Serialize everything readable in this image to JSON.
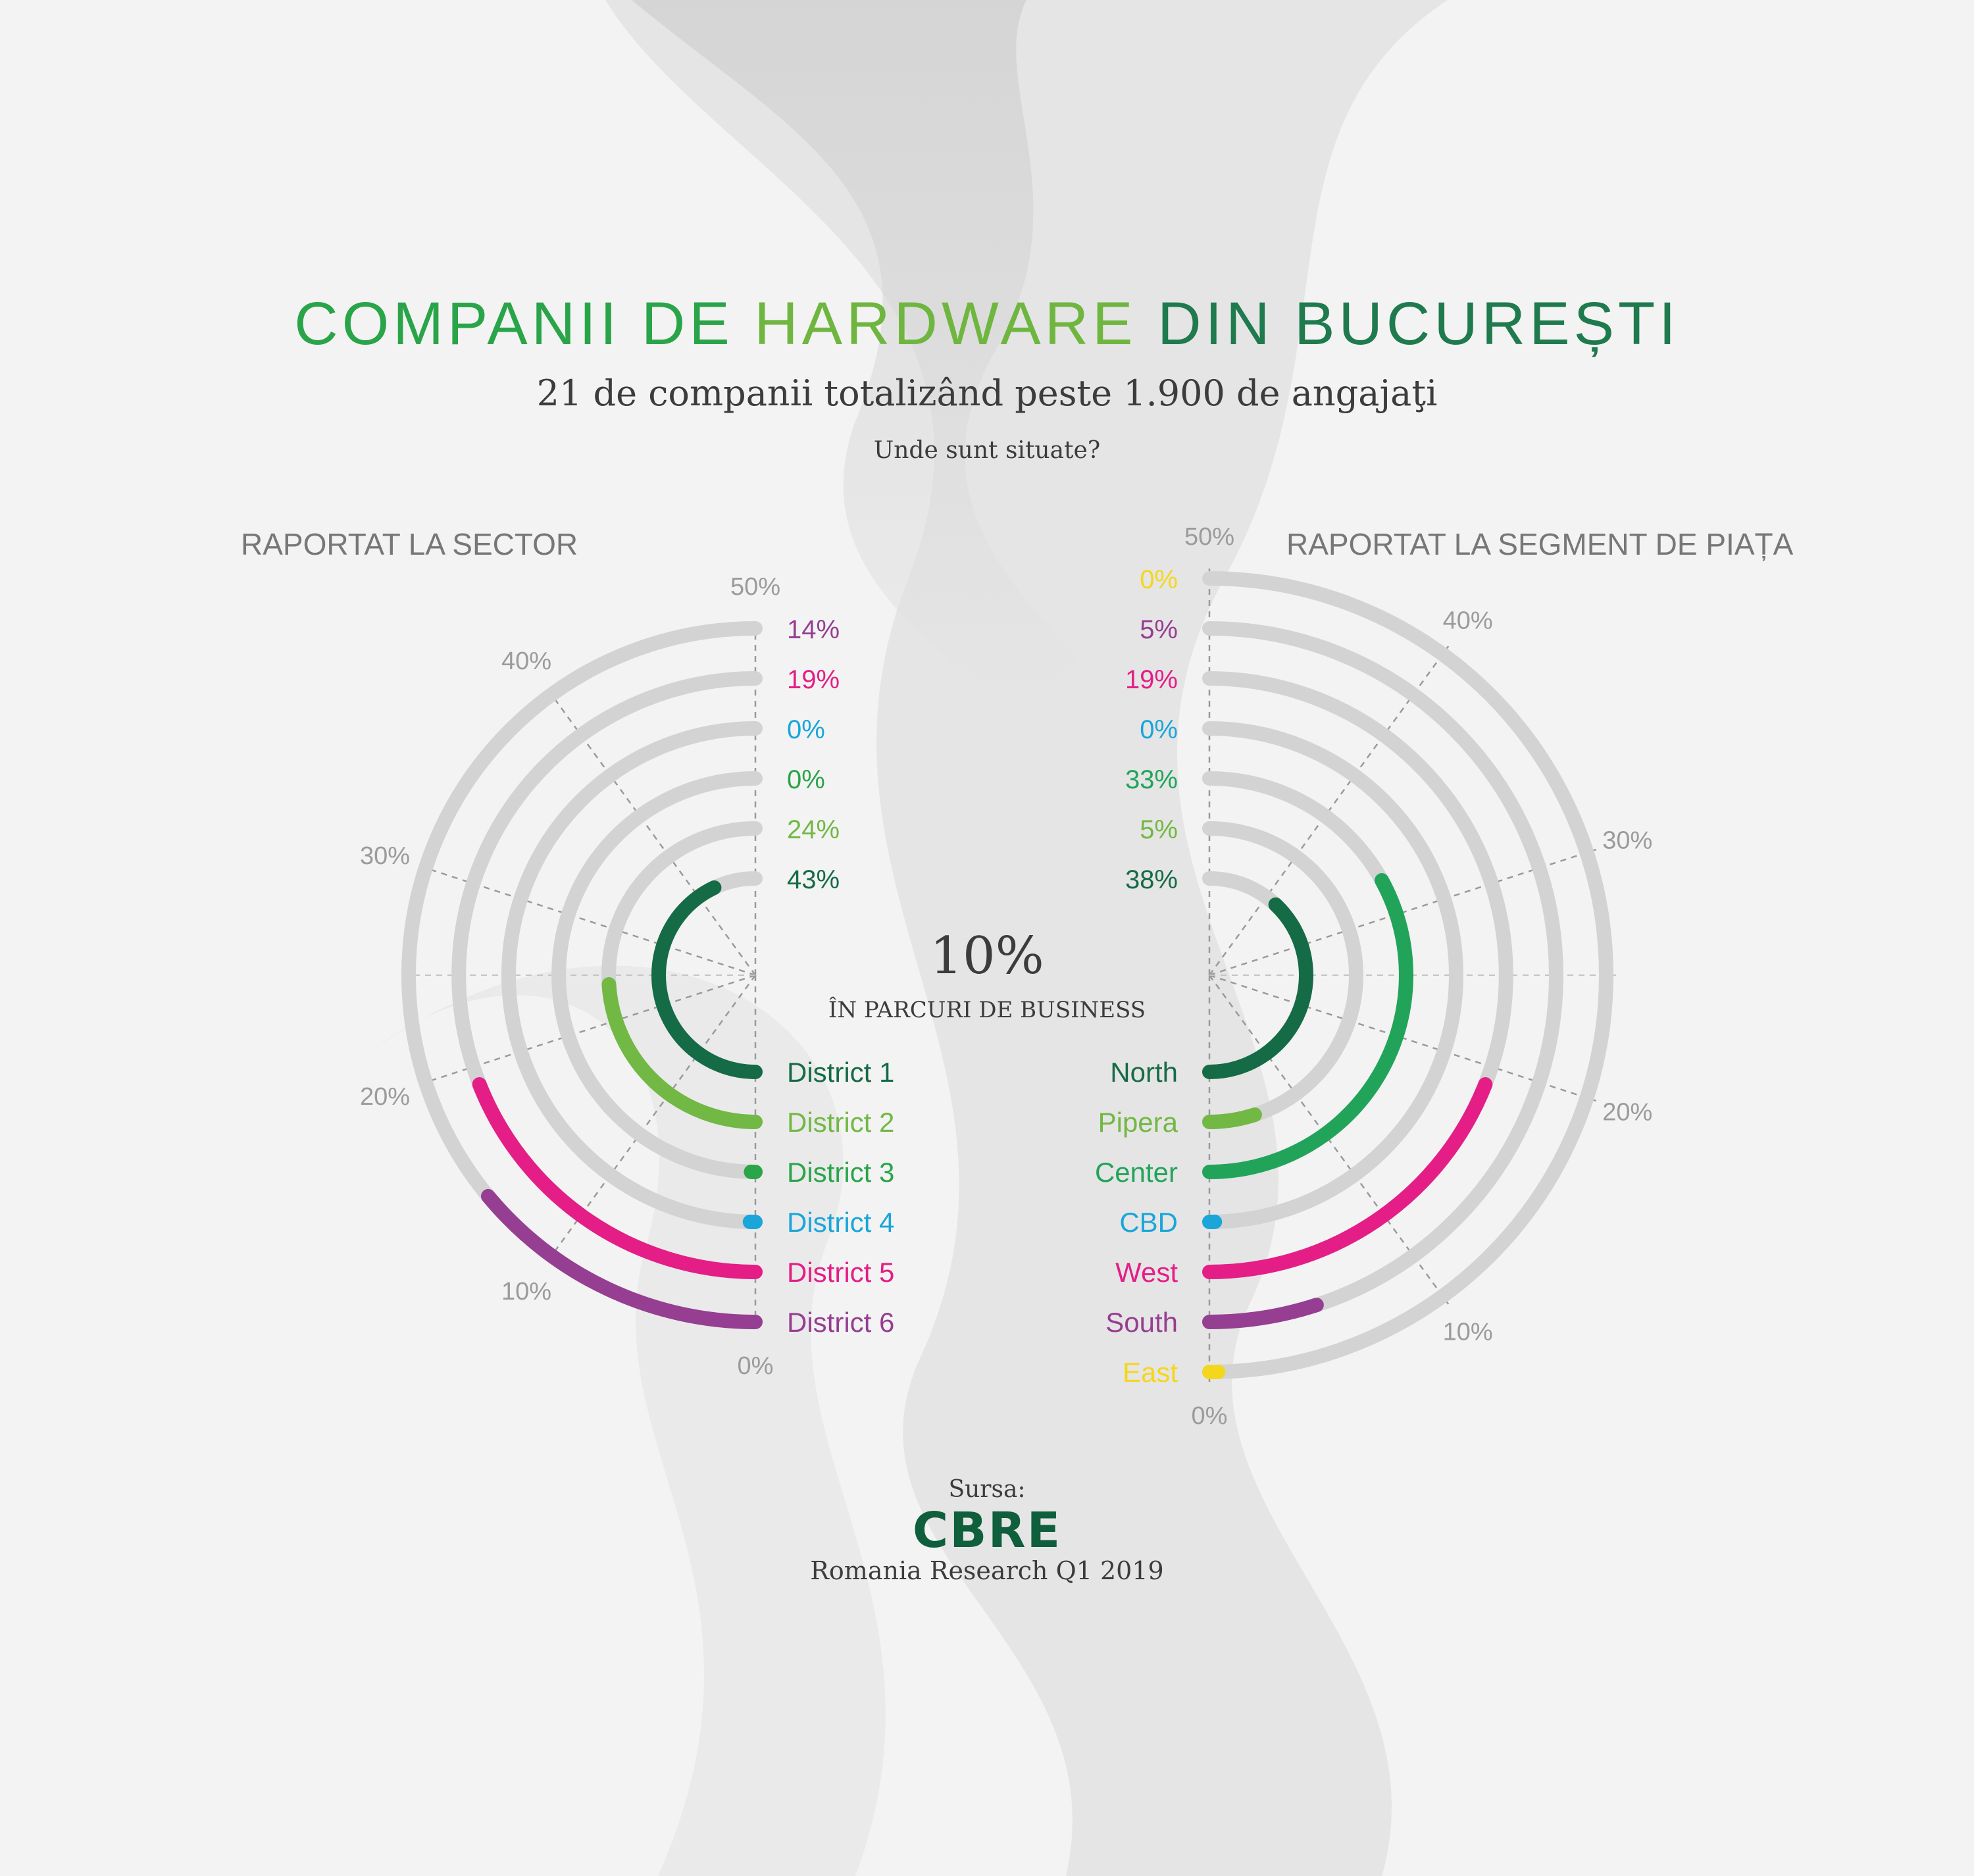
{
  "header": {
    "title_part1": "COMPANII DE ",
    "title_part2": "HARDWARE",
    "title_part3": " DIN BUCUREȘTI",
    "subtitle": "21 de companii totalizând peste 1.900 de angajaţi",
    "question": "Unde sunt situate?"
  },
  "center": {
    "value": "10%",
    "label": "ÎN PARCURI DE BUSINESS"
  },
  "source": {
    "label": "Sursa:",
    "logo": "CBRE",
    "text": "Romania Research Q1 2019"
  },
  "colors": {
    "track": "#d3d3d3",
    "axis": "#9a9a9a",
    "tick_text": "#9b9b9b"
  },
  "chart_data": [
    {
      "type": "radial-bar",
      "title": "RAPORTAT LA SECTOR",
      "scale_max": 50,
      "tick_labels": [
        "0%",
        "10%",
        "20%",
        "30%",
        "40%",
        "50%"
      ],
      "tick_values": [
        0,
        10,
        20,
        30,
        40,
        50
      ],
      "categories": [
        "District 1",
        "District 2",
        "District 3",
        "District 4",
        "District 5",
        "District 6"
      ],
      "values": [
        43,
        24,
        0,
        0,
        19,
        14
      ],
      "value_labels": [
        "43%",
        "24%",
        "0%",
        "0%",
        "19%",
        "14%"
      ],
      "colors": [
        "#156b46",
        "#72b844",
        "#2aa549",
        "#1aa6d9",
        "#e41e86",
        "#963e92"
      ]
    },
    {
      "type": "radial-bar",
      "title": "RAPORTAT LA SEGMENT DE PIAȚA",
      "scale_max": 50,
      "tick_labels": [
        "0%",
        "10%",
        "20%",
        "30%",
        "40%",
        "50%"
      ],
      "tick_values": [
        0,
        10,
        20,
        30,
        40,
        50
      ],
      "categories": [
        "North",
        "Pipera",
        "Center",
        "CBD",
        "West",
        "South",
        "East"
      ],
      "values": [
        38,
        5,
        33,
        0,
        19,
        5,
        0
      ],
      "value_labels": [
        "38%",
        "5%",
        "33%",
        "0%",
        "19%",
        "5%",
        "0%"
      ],
      "colors": [
        "#156b46",
        "#72b844",
        "#21a45a",
        "#1aa6d9",
        "#e41e86",
        "#963e92",
        "#f4d71c"
      ]
    }
  ]
}
